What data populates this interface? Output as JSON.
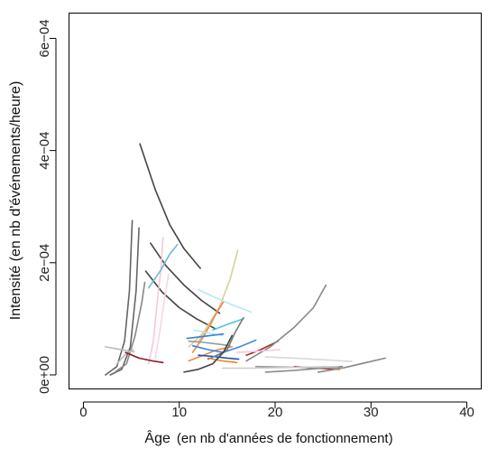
{
  "chart_data": {
    "type": "line",
    "title": "",
    "xlabel_main": "Âge",
    "xlabel_detail": "(en nb d'années de fonctionnement)",
    "ylabel": "Intensité (en nb d'événements/heure)",
    "xlim": [
      -1.5,
      41.5
    ],
    "ylim": [
      -2.5e-05,
      0.000645
    ],
    "x_ticks": [
      0,
      10,
      20,
      30,
      40
    ],
    "x_tick_labels": [
      "0",
      "10",
      "20",
      "30",
      "40"
    ],
    "y_ticks": [
      0,
      0.0002,
      0.0004,
      0.0006
    ],
    "y_tick_labels": [
      "0e+00",
      "2e−04",
      "4e−04",
      "6e−04"
    ],
    "grid": false,
    "legend": "none",
    "series": [
      {
        "color": "#444444",
        "x": [
          5.9,
          7.5,
          9.0,
          10.5,
          12.2
        ],
        "y": [
          0.000412,
          0.00033,
          0.000268,
          0.000225,
          0.00019
        ]
      },
      {
        "color": "#444444",
        "x": [
          7.0,
          8.6,
          10.5,
          12.3,
          14.2
        ],
        "y": [
          0.000235,
          0.000195,
          0.00016,
          0.000133,
          0.00011
        ]
      },
      {
        "color": "#444444",
        "x": [
          6.5,
          8.2,
          10.0,
          11.8,
          13.8
        ],
        "y": [
          0.000185,
          0.000148,
          0.00012,
          0.0001,
          8.2e-05
        ]
      },
      {
        "color": "#666666",
        "x": [
          2.3,
          3.5,
          4.3,
          4.8,
          5.1
        ],
        "y": [
          0.0,
          1.5e-05,
          6e-05,
          0.00015,
          0.000275
        ]
      },
      {
        "color": "#666666",
        "x": [
          2.8,
          4.0,
          4.9,
          5.5,
          5.8
        ],
        "y": [
          0.0,
          1e-05,
          5e-05,
          0.00015,
          0.000262
        ]
      },
      {
        "color": "#888888",
        "x": [
          3.3,
          4.5,
          5.4,
          6.1,
          6.4
        ],
        "y": [
          5e-06,
          2e-05,
          7e-05,
          0.00013,
          0.000165
        ]
      },
      {
        "color": "#f2c9e0",
        "x": [
          6.8,
          7.3,
          7.7,
          8.1,
          8.3
        ],
        "y": [
          2e-05,
          6e-05,
          0.00013,
          0.00019,
          0.000245
        ]
      },
      {
        "color": "#f5d6e8",
        "x": [
          7.5,
          8.0,
          8.5,
          8.9
        ],
        "y": [
          3e-05,
          8e-05,
          0.00014,
          0.00018
        ]
      },
      {
        "color": "#6fb8d8",
        "x": [
          6.8,
          8.0,
          9.0,
          9.8
        ],
        "y": [
          0.000155,
          0.000185,
          0.000215,
          0.000232
        ]
      },
      {
        "color": "#bbbbbb",
        "x": [
          2.3,
          3.3,
          4.3,
          5.3
        ],
        "y": [
          5e-05,
          4.7e-05,
          4.4e-05,
          4.1e-05
        ]
      },
      {
        "color": "#bbbbbb",
        "x": [
          3.5,
          4.3,
          5.2
        ],
        "y": [
          2e-05,
          3.5e-05,
          4.5e-05
        ]
      },
      {
        "color": "#8b1a1a",
        "x": [
          4.4,
          5.8,
          7.2,
          8.3
        ],
        "y": [
          4e-05,
          3e-05,
          2.5e-05,
          2.2e-05
        ]
      },
      {
        "color": "#d9cf9c",
        "x": [
          12.0,
          13.3,
          14.4,
          15.3,
          16.1
        ],
        "y": [
          6e-05,
          9e-05,
          0.00013,
          0.00017,
          0.000222
        ]
      },
      {
        "color": "#d9cf9c",
        "x": [
          11.0,
          12.5,
          13.8
        ],
        "y": [
          5e-05,
          7.5e-05,
          0.00011
        ]
      },
      {
        "color": "#ee8844",
        "x": [
          11.4,
          12.6,
          13.7,
          14.6
        ],
        "y": [
          4e-05,
          7e-05,
          0.000105,
          0.00013
        ]
      },
      {
        "color": "#ee8844",
        "x": [
          11.0,
          12.5,
          14.0,
          15.5
        ],
        "y": [
          2.5e-05,
          3.5e-05,
          4.5e-05,
          5e-05
        ]
      },
      {
        "color": "#b8e8ee",
        "x": [
          12.0,
          13.5,
          15.5,
          17.5
        ],
        "y": [
          0.000152,
          0.00014,
          0.000125,
          0.000112
        ]
      },
      {
        "color": "#b8e8ee",
        "x": [
          11.5,
          13.0,
          14.5
        ],
        "y": [
          8e-05,
          7.5e-05,
          7e-05
        ]
      },
      {
        "color": "#55c4d8",
        "x": [
          13.5,
          15.0,
          16.7
        ],
        "y": [
          8e-05,
          9e-05,
          0.0001
        ]
      },
      {
        "color": "#3a7fd8",
        "x": [
          10.8,
          12.2,
          13.6,
          14.6
        ],
        "y": [
          6.5e-05,
          6.8e-05,
          7.1e-05,
          7.3e-05
        ]
      },
      {
        "color": "#3a7fd8",
        "x": [
          11.4,
          13.0,
          14.6
        ],
        "y": [
          5.2e-05,
          4.5e-05,
          4e-05
        ]
      },
      {
        "color": "#1f4fc0",
        "x": [
          12.0,
          13.5,
          15.0,
          16.2
        ],
        "y": [
          3.5e-05,
          3.3e-05,
          3e-05,
          2.8e-05
        ]
      },
      {
        "color": "#4488dd",
        "x": [
          13.0,
          14.6,
          16.3,
          18.0
        ],
        "y": [
          2.8e-05,
          4e-05,
          5e-05,
          6.2e-05
        ]
      },
      {
        "color": "#999999",
        "x": [
          11.0,
          12.5,
          14.0,
          15.3
        ],
        "y": [
          6e-05,
          5.8e-05,
          5.5e-05,
          5.2e-05
        ]
      },
      {
        "color": "#777777",
        "x": [
          14.0,
          15.0,
          15.8,
          16.7
        ],
        "y": [
          3.5e-05,
          4.5e-05,
          7.5e-05,
          0.000102
        ]
      },
      {
        "color": "#ee8800",
        "x": [
          13.0,
          14.5,
          16.0
        ],
        "y": [
          3e-05,
          2.5e-05,
          2.2e-05
        ]
      },
      {
        "color": "#a52a2a",
        "x": [
          17.0,
          18.5,
          20.3
        ],
        "y": [
          3.5e-05,
          4.5e-05,
          6e-05
        ]
      },
      {
        "color": "#a52a2a",
        "x": [
          22.0,
          24.0,
          26.7
        ],
        "y": [
          1.5e-05,
          1.2e-05,
          1e-05
        ]
      },
      {
        "color": "#ee8800",
        "x": [
          25.0,
          26.0,
          26.7
        ],
        "y": [
          1.5e-05,
          1.2e-05,
          1e-05
        ]
      },
      {
        "color": "#444444",
        "x": [
          10.5,
          12.0,
          13.5,
          14.6,
          15.5
        ],
        "y": [
          5e-06,
          1e-05,
          2e-05,
          4e-05,
          7e-05
        ]
      },
      {
        "color": "#888888",
        "x": [
          17.0,
          19.5,
          22.0,
          24.0,
          25.3
        ],
        "y": [
          2.5e-05,
          5e-05,
          8.5e-05,
          0.00012,
          0.00016
        ]
      },
      {
        "color": "#888888",
        "x": [
          19.0,
          22.0,
          25.0,
          27.0
        ],
        "y": [
          5e-06,
          8e-06,
          1.2e-05,
          1.5e-05
        ]
      },
      {
        "color": "#888888",
        "x": [
          24.5,
          27.0,
          29.5,
          31.5
        ],
        "y": [
          5e-06,
          1.2e-05,
          2.2e-05,
          3e-05
        ]
      },
      {
        "color": "#999999",
        "x": [
          18.0,
          21.0,
          24.0,
          27.0
        ],
        "y": [
          1.5e-05,
          1.4e-05,
          1.3e-05,
          1.2e-05
        ]
      },
      {
        "color": "#cccccc",
        "x": [
          14.5,
          17.5,
          20.5,
          23.5,
          26.5
        ],
        "y": [
          1.2e-05,
          1.2e-05,
          1.3e-05,
          1.4e-05,
          1.5e-05
        ]
      },
      {
        "color": "#d8d8d8",
        "x": [
          19.0,
          22.0,
          25.0,
          28.0
        ],
        "y": [
          3.2e-05,
          3e-05,
          2.7e-05,
          2.4e-05
        ]
      },
      {
        "color": "#f2c9e0",
        "x": [
          16.0,
          18.0,
          20.5
        ],
        "y": [
          4e-05,
          4.2e-05,
          4.5e-05
        ]
      }
    ]
  }
}
